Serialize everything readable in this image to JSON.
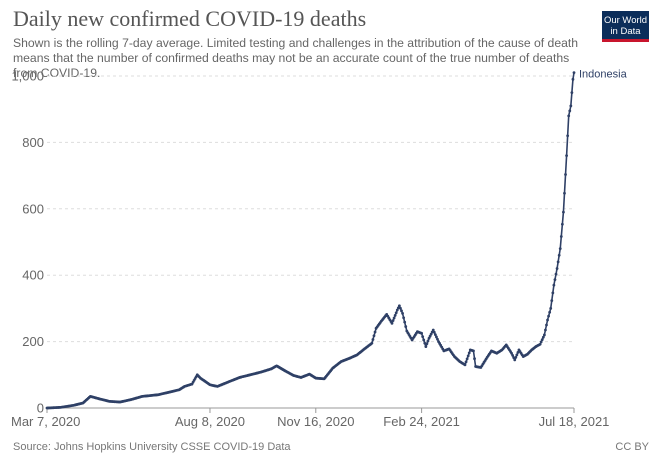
{
  "header": {
    "title": "Daily new confirmed COVID-19 deaths",
    "subtitle": "Shown is the rolling 7-day average. Limited testing and challenges in the attribution of the cause of death means that the number of confirmed deaths may not be an accurate count of the true number of deaths from COVID-19."
  },
  "logo": {
    "line1": "Our World",
    "line2": "in Data"
  },
  "footer": {
    "source": "Source: Johns Hopkins University CSSE COVID-19 Data",
    "license": "CC BY"
  },
  "colors": {
    "series": "#2f4066",
    "grid": "#dddddd",
    "axis": "#999999",
    "text": "#666666"
  },
  "chart_data": {
    "type": "line",
    "title": "Daily new confirmed COVID-19 deaths",
    "x_start": "2020-03-07",
    "x_end": "2021-07-18",
    "ylim": [
      0,
      1000
    ],
    "y_ticks": [
      {
        "value": 0,
        "label": "0"
      },
      {
        "value": 200,
        "label": "200"
      },
      {
        "value": 400,
        "label": "400"
      },
      {
        "value": 600,
        "label": "600"
      },
      {
        "value": 800,
        "label": "800"
      },
      {
        "value": 1000,
        "label": "1,000"
      }
    ],
    "x_ticks": [
      {
        "date": "2020-03-07",
        "label": "Mar 7, 2020"
      },
      {
        "date": "2020-08-08",
        "label": "Aug 8, 2020"
      },
      {
        "date": "2020-11-16",
        "label": "Nov 16, 2020"
      },
      {
        "date": "2021-02-24",
        "label": "Feb 24, 2021"
      },
      {
        "date": "2021-07-18",
        "label": "Jul 18, 2021"
      }
    ],
    "grid": true,
    "series": [
      {
        "name": "Indonesia",
        "color": "#2f4066",
        "points": [
          [
            "2020-03-07",
            0
          ],
          [
            "2020-03-20",
            2
          ],
          [
            "2020-04-01",
            8
          ],
          [
            "2020-04-10",
            15
          ],
          [
            "2020-04-17",
            35
          ],
          [
            "2020-04-25",
            28
          ],
          [
            "2020-05-05",
            20
          ],
          [
            "2020-05-15",
            18
          ],
          [
            "2020-05-25",
            25
          ],
          [
            "2020-06-05",
            35
          ],
          [
            "2020-06-20",
            40
          ],
          [
            "2020-07-01",
            48
          ],
          [
            "2020-07-10",
            55
          ],
          [
            "2020-07-15",
            65
          ],
          [
            "2020-07-22",
            72
          ],
          [
            "2020-07-27",
            100
          ],
          [
            "2020-07-30",
            90
          ],
          [
            "2020-08-08",
            70
          ],
          [
            "2020-08-15",
            65
          ],
          [
            "2020-08-25",
            78
          ],
          [
            "2020-09-05",
            92
          ],
          [
            "2020-09-15",
            100
          ],
          [
            "2020-09-25",
            108
          ],
          [
            "2020-10-05",
            118
          ],
          [
            "2020-10-10",
            127
          ],
          [
            "2020-10-18",
            112
          ],
          [
            "2020-10-26",
            98
          ],
          [
            "2020-11-02",
            92
          ],
          [
            "2020-11-10",
            102
          ],
          [
            "2020-11-16",
            90
          ],
          [
            "2020-11-24",
            88
          ],
          [
            "2020-12-02",
            120
          ],
          [
            "2020-12-10",
            140
          ],
          [
            "2020-12-18",
            150
          ],
          [
            "2020-12-25",
            160
          ],
          [
            "2021-01-01",
            178
          ],
          [
            "2021-01-08",
            195
          ],
          [
            "2021-01-12",
            240
          ],
          [
            "2021-01-17",
            262
          ],
          [
            "2021-01-22",
            282
          ],
          [
            "2021-01-27",
            255
          ],
          [
            "2021-02-01",
            295
          ],
          [
            "2021-02-03",
            308
          ],
          [
            "2021-02-06",
            285
          ],
          [
            "2021-02-10",
            232
          ],
          [
            "2021-02-15",
            205
          ],
          [
            "2021-02-20",
            230
          ],
          [
            "2021-02-24",
            225
          ],
          [
            "2021-02-28",
            185
          ],
          [
            "2021-03-03",
            210
          ],
          [
            "2021-03-07",
            235
          ],
          [
            "2021-03-12",
            200
          ],
          [
            "2021-03-17",
            172
          ],
          [
            "2021-03-22",
            178
          ],
          [
            "2021-03-27",
            155
          ],
          [
            "2021-04-01",
            140
          ],
          [
            "2021-04-06",
            130
          ],
          [
            "2021-04-11",
            175
          ],
          [
            "2021-04-14",
            172
          ],
          [
            "2021-04-16",
            125
          ],
          [
            "2021-04-21",
            122
          ],
          [
            "2021-04-26",
            148
          ],
          [
            "2021-05-01",
            172
          ],
          [
            "2021-05-06",
            165
          ],
          [
            "2021-05-11",
            175
          ],
          [
            "2021-05-15",
            190
          ],
          [
            "2021-05-20",
            165
          ],
          [
            "2021-05-23",
            145
          ],
          [
            "2021-05-27",
            175
          ],
          [
            "2021-05-31",
            155
          ],
          [
            "2021-06-04",
            162
          ],
          [
            "2021-06-08",
            175
          ],
          [
            "2021-06-12",
            185
          ],
          [
            "2021-06-16",
            192
          ],
          [
            "2021-06-20",
            220
          ],
          [
            "2021-06-23",
            265
          ],
          [
            "2021-06-26",
            300
          ],
          [
            "2021-06-29",
            370
          ],
          [
            "2021-07-02",
            420
          ],
          [
            "2021-07-05",
            480
          ],
          [
            "2021-07-08",
            590
          ],
          [
            "2021-07-11",
            760
          ],
          [
            "2021-07-13",
            880
          ],
          [
            "2021-07-15",
            910
          ],
          [
            "2021-07-17",
            990
          ],
          [
            "2021-07-18",
            1010
          ]
        ]
      }
    ]
  }
}
